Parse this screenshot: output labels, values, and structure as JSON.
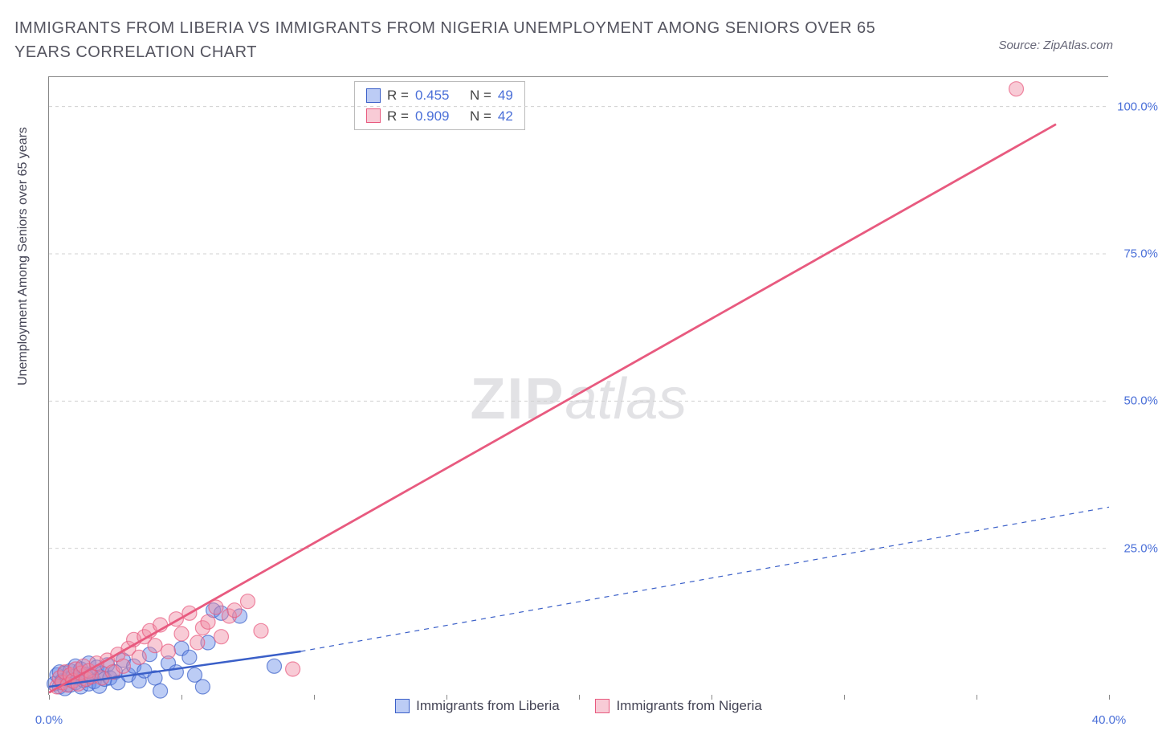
{
  "title": "IMMIGRANTS FROM LIBERIA VS IMMIGRANTS FROM NIGERIA UNEMPLOYMENT AMONG SENIORS OVER 65 YEARS CORRELATION CHART",
  "source_label": "Source: ZipAtlas.com",
  "y_axis_label": "Unemployment Among Seniors over 65 years",
  "watermark_bold": "ZIP",
  "watermark_light": "atlas",
  "chart": {
    "type": "scatter-with-regression",
    "background_color": "#ffffff",
    "grid_color": "#d0d0d0",
    "axis_color": "#888888",
    "text_color": "#444455",
    "tick_label_color": "#4a6fd8",
    "xlim": [
      0,
      40
    ],
    "ylim": [
      0,
      105
    ],
    "x_ticks": [
      0,
      5,
      10,
      15,
      20,
      25,
      30,
      35,
      40
    ],
    "x_tick_labels": {
      "0": "0.0%",
      "40": "40.0%"
    },
    "y_ticks": [
      25,
      50,
      75,
      100
    ],
    "y_tick_labels": {
      "25": "25.0%",
      "50": "50.0%",
      "75": "75.0%",
      "100": "100.0%"
    },
    "point_radius": 9,
    "point_opacity": 0.45,
    "series": [
      {
        "name": "Immigrants from Liberia",
        "fill_color": "#6b8fe8",
        "stroke_color": "#3a5fc8",
        "swatch_fill": "rgba(107,143,232,0.45)",
        "swatch_border": "#3a5fc8",
        "R": "0.455",
        "N": "49",
        "regression": {
          "x1": 0,
          "y1": 1.5,
          "x2": 9.5,
          "y2": 7.5,
          "ext_x2": 40,
          "ext_y2": 32,
          "solid_width": 2.5,
          "dash_width": 1.2,
          "dash": "6,6"
        },
        "points": [
          [
            0.2,
            2.0
          ],
          [
            0.3,
            3.5
          ],
          [
            0.4,
            1.5
          ],
          [
            0.4,
            4.0
          ],
          [
            0.5,
            2.5
          ],
          [
            0.6,
            3.8
          ],
          [
            0.6,
            1.2
          ],
          [
            0.7,
            2.8
          ],
          [
            0.8,
            4.2
          ],
          [
            0.8,
            1.8
          ],
          [
            0.9,
            3.2
          ],
          [
            1.0,
            2.2
          ],
          [
            1.0,
            5.0
          ],
          [
            1.1,
            3.0
          ],
          [
            1.2,
            1.5
          ],
          [
            1.2,
            4.5
          ],
          [
            1.3,
            2.6
          ],
          [
            1.4,
            3.6
          ],
          [
            1.5,
            2.0
          ],
          [
            1.5,
            5.5
          ],
          [
            1.6,
            3.4
          ],
          [
            1.7,
            2.4
          ],
          [
            1.8,
            4.8
          ],
          [
            1.9,
            1.6
          ],
          [
            2.0,
            3.8
          ],
          [
            2.1,
            2.8
          ],
          [
            2.2,
            5.2
          ],
          [
            2.3,
            3.0
          ],
          [
            2.5,
            4.0
          ],
          [
            2.6,
            2.2
          ],
          [
            2.8,
            6.0
          ],
          [
            3.0,
            3.5
          ],
          [
            3.2,
            5.0
          ],
          [
            3.4,
            2.5
          ],
          [
            3.6,
            4.2
          ],
          [
            3.8,
            7.0
          ],
          [
            4.0,
            3.0
          ],
          [
            4.2,
            0.8
          ],
          [
            4.5,
            5.5
          ],
          [
            4.8,
            4.0
          ],
          [
            5.0,
            8.0
          ],
          [
            5.3,
            6.5
          ],
          [
            5.5,
            3.5
          ],
          [
            5.8,
            1.5
          ],
          [
            6.0,
            9.0
          ],
          [
            6.2,
            14.5
          ],
          [
            6.5,
            14.0
          ],
          [
            7.2,
            13.5
          ],
          [
            8.5,
            5.0
          ]
        ]
      },
      {
        "name": "Immigrants from Nigeria",
        "fill_color": "#f08ba4",
        "stroke_color": "#e85a7f",
        "swatch_fill": "rgba(240,139,164,0.45)",
        "swatch_border": "#e85a7f",
        "R": "0.909",
        "N": "42",
        "regression": {
          "x1": 0,
          "y1": 0.5,
          "x2": 38,
          "y2": 97,
          "solid_width": 2.8
        },
        "points": [
          [
            0.3,
            1.5
          ],
          [
            0.4,
            3.0
          ],
          [
            0.5,
            2.2
          ],
          [
            0.6,
            4.0
          ],
          [
            0.7,
            1.8
          ],
          [
            0.8,
            3.5
          ],
          [
            0.9,
            2.5
          ],
          [
            1.0,
            4.5
          ],
          [
            1.1,
            2.0
          ],
          [
            1.2,
            3.8
          ],
          [
            1.3,
            5.0
          ],
          [
            1.4,
            2.8
          ],
          [
            1.5,
            4.2
          ],
          [
            1.6,
            3.2
          ],
          [
            1.8,
            5.5
          ],
          [
            2.0,
            3.0
          ],
          [
            2.2,
            6.0
          ],
          [
            2.4,
            4.0
          ],
          [
            2.6,
            7.0
          ],
          [
            2.8,
            5.0
          ],
          [
            3.0,
            8.0
          ],
          [
            3.2,
            9.5
          ],
          [
            3.4,
            6.5
          ],
          [
            3.6,
            10.0
          ],
          [
            3.8,
            11.0
          ],
          [
            4.0,
            8.5
          ],
          [
            4.2,
            12.0
          ],
          [
            4.5,
            7.5
          ],
          [
            4.8,
            13.0
          ],
          [
            5.0,
            10.5
          ],
          [
            5.3,
            14.0
          ],
          [
            5.6,
            9.0
          ],
          [
            5.8,
            11.5
          ],
          [
            6.0,
            12.5
          ],
          [
            6.3,
            15.0
          ],
          [
            6.5,
            10.0
          ],
          [
            6.8,
            13.5
          ],
          [
            7.0,
            14.5
          ],
          [
            7.5,
            16.0
          ],
          [
            8.0,
            11.0
          ],
          [
            9.2,
            4.5
          ],
          [
            36.5,
            103.0
          ]
        ]
      }
    ]
  },
  "stats_legend": {
    "R_label": "R =",
    "N_label": "N ="
  },
  "bottom_legend": [
    "Immigrants from Liberia",
    "Immigrants from Nigeria"
  ]
}
